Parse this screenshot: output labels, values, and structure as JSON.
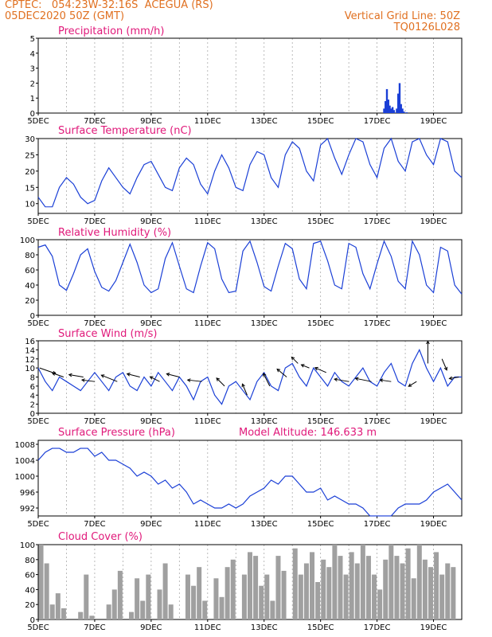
{
  "header": {
    "line1_left": "CPTEC:   054:23W-32:16S  ACEGUA (RS)",
    "line2_left": "05DEC2020 50Z (GMT)",
    "line1_right": "Vertical Grid Line: 50Z",
    "line2_right": "TQ0126L028"
  },
  "colors": {
    "header": "#e07020",
    "title": "#e0197a",
    "line": "#1a3fd6",
    "bar": "#1a3fd6",
    "cloud": "#a0a0a0",
    "arrow": "#000000"
  },
  "xaxis": {
    "ticks": [
      "5DEC",
      "7DEC",
      "9DEC",
      "11DEC",
      "13DEC",
      "15DEC",
      "17DEC",
      "19DEC"
    ],
    "days_span": 15
  },
  "chart_data": [
    {
      "type": "bar",
      "title": "Precipitation (mm/h)",
      "ylim": [
        0,
        5
      ],
      "yticks": [
        0,
        1,
        2,
        3,
        4,
        5
      ],
      "x": [
        12.25,
        12.3,
        12.35,
        12.4,
        12.45,
        12.5,
        12.55,
        12.6,
        12.65,
        12.7,
        12.75,
        12.8,
        12.85,
        12.9,
        12.95,
        13.0,
        13.05
      ],
      "values": [
        0.3,
        0.8,
        1.6,
        0.9,
        0.5,
        0.3,
        0.4,
        0.2,
        0.0,
        0.3,
        1.3,
        2.0,
        0.6,
        0.3,
        0.1,
        0.0,
        0.05
      ]
    },
    {
      "type": "line",
      "title": "Surface Temperature (nC)",
      "ylim": [
        7,
        30
      ],
      "yticks": [
        10,
        15,
        20,
        25,
        30
      ],
      "x": [
        0,
        0.25,
        0.5,
        0.75,
        1,
        1.25,
        1.5,
        1.75,
        2,
        2.25,
        2.5,
        2.75,
        3,
        3.25,
        3.5,
        3.75,
        4,
        4.25,
        4.5,
        4.75,
        5,
        5.25,
        5.5,
        5.75,
        6,
        6.25,
        6.5,
        6.75,
        7,
        7.25,
        7.5,
        7.75,
        8,
        8.25,
        8.5,
        8.75,
        9,
        9.25,
        9.5,
        9.75,
        10,
        10.25,
        10.5,
        10.75,
        11,
        11.25,
        11.5,
        11.75,
        12,
        12.25,
        12.5,
        12.75,
        13,
        13.25,
        13.5,
        13.75,
        14,
        14.25,
        14.5,
        14.75,
        15
      ],
      "values": [
        12,
        9,
        9,
        15,
        18,
        16,
        12,
        10,
        11,
        17,
        21,
        18,
        15,
        13,
        18,
        22,
        23,
        19,
        15,
        14,
        21,
        24,
        22,
        16,
        13,
        20,
        25,
        21,
        15,
        14,
        22,
        26,
        25,
        18,
        15,
        25,
        29,
        27,
        20,
        17,
        28,
        30,
        24,
        19,
        25,
        30,
        29,
        22,
        18,
        27,
        30,
        23,
        20,
        29,
        30,
        25,
        22,
        30,
        29,
        20,
        18
      ]
    },
    {
      "type": "line",
      "title": "Relative Humidity (%)",
      "ylim": [
        0,
        100
      ],
      "yticks": [
        0,
        20,
        40,
        60,
        80,
        100
      ],
      "x": [
        0,
        0.25,
        0.5,
        0.75,
        1,
        1.25,
        1.5,
        1.75,
        2,
        2.25,
        2.5,
        2.75,
        3,
        3.25,
        3.5,
        3.75,
        4,
        4.25,
        4.5,
        4.75,
        5,
        5.25,
        5.5,
        5.75,
        6,
        6.25,
        6.5,
        6.75,
        7,
        7.25,
        7.5,
        7.75,
        8,
        8.25,
        8.5,
        8.75,
        9,
        9.25,
        9.5,
        9.75,
        10,
        10.25,
        10.5,
        10.75,
        11,
        11.25,
        11.5,
        11.75,
        12,
        12.25,
        12.5,
        12.75,
        13,
        13.25,
        13.5,
        13.75,
        14,
        14.25,
        14.5,
        14.75,
        15
      ],
      "values": [
        90,
        93,
        78,
        40,
        33,
        55,
        80,
        88,
        58,
        37,
        32,
        46,
        70,
        94,
        70,
        40,
        30,
        35,
        75,
        96,
        65,
        35,
        30,
        65,
        96,
        88,
        48,
        30,
        32,
        85,
        98,
        70,
        38,
        32,
        65,
        95,
        88,
        48,
        35,
        95,
        98,
        72,
        40,
        35,
        95,
        90,
        55,
        35,
        68,
        98,
        78,
        45,
        35,
        98,
        80,
        40,
        30,
        90,
        85,
        40,
        28
      ]
    },
    {
      "type": "line",
      "title": "Surface Wind (m/s)",
      "ylim": [
        0,
        16
      ],
      "yticks": [
        0,
        2,
        4,
        6,
        8,
        10,
        12,
        14,
        16
      ],
      "x": [
        0,
        0.25,
        0.5,
        0.75,
        1,
        1.25,
        1.5,
        1.75,
        2,
        2.25,
        2.5,
        2.75,
        3,
        3.25,
        3.5,
        3.75,
        4,
        4.25,
        4.5,
        4.75,
        5,
        5.25,
        5.5,
        5.75,
        6,
        6.25,
        6.5,
        6.75,
        7,
        7.25,
        7.5,
        7.75,
        8,
        8.25,
        8.5,
        8.75,
        9,
        9.25,
        9.5,
        9.75,
        10,
        10.25,
        10.5,
        10.75,
        11,
        11.25,
        11.5,
        11.75,
        12,
        12.25,
        12.5,
        12.75,
        13,
        13.25,
        13.5,
        13.75,
        14,
        14.25,
        14.5,
        14.75,
        15
      ],
      "values": [
        10,
        7,
        5,
        8,
        7,
        6,
        5,
        7,
        9,
        7,
        5,
        8,
        9,
        6,
        5,
        8,
        6,
        9,
        7,
        5,
        8,
        6,
        3,
        7,
        8,
        4,
        2,
        6,
        7,
        5,
        3,
        7,
        9,
        6,
        5,
        10,
        11,
        8,
        6,
        10,
        8,
        6,
        9,
        7,
        6,
        8,
        10,
        7,
        6,
        9,
        11,
        7,
        6,
        11,
        14,
        10,
        7,
        10,
        6,
        8,
        8
      ]
    },
    {
      "type": "line",
      "title": "Surface Pressure (hPa)",
      "annotation": "Model Altitude: 146.633 m",
      "ylim": [
        990,
        1009
      ],
      "yticks": [
        992,
        996,
        1000,
        1004,
        1008
      ],
      "x": [
        0,
        0.25,
        0.5,
        0.75,
        1,
        1.25,
        1.5,
        1.75,
        2,
        2.25,
        2.5,
        2.75,
        3,
        3.25,
        3.5,
        3.75,
        4,
        4.25,
        4.5,
        4.75,
        5,
        5.25,
        5.5,
        5.75,
        6,
        6.25,
        6.5,
        6.75,
        7,
        7.25,
        7.5,
        7.75,
        8,
        8.25,
        8.5,
        8.75,
        9,
        9.25,
        9.5,
        9.75,
        10,
        10.25,
        10.5,
        10.75,
        11,
        11.25,
        11.5,
        11.75,
        12.5,
        12.75,
        13,
        13.25,
        13.5,
        13.75,
        14,
        14.25,
        14.5,
        14.75,
        15
      ],
      "values": [
        1004,
        1006,
        1007,
        1007,
        1006,
        1006,
        1007,
        1007,
        1005,
        1006,
        1004,
        1004,
        1003,
        1002,
        1000,
        1001,
        1000,
        998,
        999,
        997,
        998,
        996,
        993,
        994,
        993,
        992,
        992,
        993,
        992,
        993,
        995,
        996,
        997,
        999,
        998,
        1000,
        1000,
        998,
        996,
        996,
        997,
        994,
        995,
        994,
        993,
        993,
        992,
        990,
        990,
        992,
        993,
        993,
        993,
        994,
        996,
        997,
        998,
        996,
        994
      ]
    },
    {
      "type": "bar",
      "title": "Cloud Cover (%)",
      "ylim": [
        0,
        100
      ],
      "yticks": [
        0,
        20,
        40,
        60,
        80,
        100
      ],
      "x": [
        0.1,
        0.3,
        0.5,
        0.7,
        0.9,
        1.5,
        1.7,
        1.9,
        2.5,
        2.7,
        2.9,
        3.3,
        3.5,
        3.7,
        3.9,
        4.3,
        4.5,
        4.7,
        5.3,
        5.5,
        5.7,
        5.9,
        6.3,
        6.5,
        6.7,
        6.9,
        7.3,
        7.5,
        7.7,
        7.9,
        8.1,
        8.3,
        8.5,
        8.7,
        9.1,
        9.3,
        9.5,
        9.7,
        9.9,
        10.1,
        10.3,
        10.5,
        10.7,
        10.9,
        11.1,
        11.3,
        11.5,
        11.7,
        11.9,
        12.1,
        12.3,
        12.5,
        12.7,
        12.9,
        13.1,
        13.3,
        13.5,
        13.7,
        13.9,
        14.1,
        14.3,
        14.5,
        14.7
      ],
      "values": [
        100,
        75,
        20,
        35,
        15,
        10,
        60,
        5,
        20,
        40,
        65,
        10,
        55,
        25,
        60,
        40,
        75,
        20,
        60,
        45,
        70,
        25,
        55,
        30,
        70,
        80,
        60,
        90,
        85,
        45,
        60,
        25,
        85,
        65,
        95,
        60,
        75,
        90,
        50,
        80,
        70,
        100,
        85,
        60,
        90,
        75,
        100,
        85,
        60,
        40,
        80,
        100,
        85,
        75,
        95,
        55,
        100,
        80,
        70,
        90,
        60,
        75,
        70
      ]
    }
  ],
  "wind_barbs": [
    {
      "x": 0.05,
      "y": 10,
      "dx": 20,
      "dy": 7
    },
    {
      "x": 0.9,
      "y": 8,
      "dx": -14,
      "dy": -5
    },
    {
      "x": 1.6,
      "y": 8,
      "dx": -18,
      "dy": -3
    },
    {
      "x": 2.0,
      "y": 7,
      "dx": -16,
      "dy": -2
    },
    {
      "x": 2.8,
      "y": 7,
      "dx": -20,
      "dy": -8
    },
    {
      "x": 3.6,
      "y": 8,
      "dx": -16,
      "dy": -4
    },
    {
      "x": 4.3,
      "y": 7,
      "dx": -12,
      "dy": -6
    },
    {
      "x": 5.0,
      "y": 8,
      "dx": -16,
      "dy": -4
    },
    {
      "x": 5.8,
      "y": 7,
      "dx": -18,
      "dy": -2
    },
    {
      "x": 6.6,
      "y": 6,
      "dx": -10,
      "dy": -10
    },
    {
      "x": 7.4,
      "y": 4,
      "dx": -6,
      "dy": -14
    },
    {
      "x": 8.2,
      "y": 6,
      "dx": -8,
      "dy": -16
    },
    {
      "x": 8.8,
      "y": 8,
      "dx": -12,
      "dy": -10
    },
    {
      "x": 9.2,
      "y": 11,
      "dx": -8,
      "dy": -8
    },
    {
      "x": 9.6,
      "y": 10,
      "dx": -10,
      "dy": -4
    },
    {
      "x": 10.2,
      "y": 9,
      "dx": -14,
      "dy": -6
    },
    {
      "x": 11.0,
      "y": 7,
      "dx": -18,
      "dy": -3
    },
    {
      "x": 11.8,
      "y": 7,
      "dx": -20,
      "dy": -4
    },
    {
      "x": 12.5,
      "y": 7,
      "dx": -14,
      "dy": -2
    },
    {
      "x": 13.4,
      "y": 7,
      "dx": -10,
      "dy": 6
    },
    {
      "x": 13.8,
      "y": 11,
      "dx": 0,
      "dy": -28
    },
    {
      "x": 14.3,
      "y": 12,
      "dx": 6,
      "dy": 14
    },
    {
      "x": 14.9,
      "y": 8,
      "dx": -12,
      "dy": 2
    }
  ]
}
